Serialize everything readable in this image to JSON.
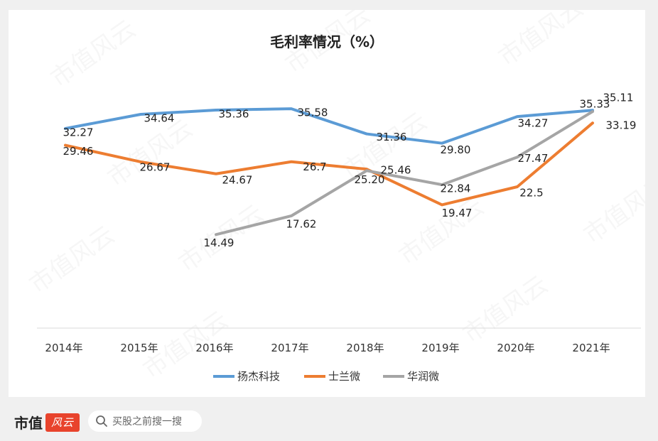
{
  "chart_data": {
    "type": "line",
    "title": "毛利率情况（%）",
    "categories": [
      "2014年",
      "2015年",
      "2016年",
      "2017年",
      "2018年",
      "2019年",
      "2020年",
      "2021年"
    ],
    "ylim": [
      0,
      40
    ],
    "legend_position": "bottom",
    "series": [
      {
        "name": "扬杰科技",
        "color": "#5b9bd5",
        "values": [
          32.27,
          34.64,
          35.36,
          35.58,
          31.36,
          29.8,
          34.27,
          35.33
        ],
        "labels": [
          "32.27",
          "34.64",
          "35.36",
          "35.58",
          "31.36",
          "29.80",
          "34.27",
          "35.33"
        ]
      },
      {
        "name": "士兰微",
        "color": "#ed7d31",
        "values": [
          29.46,
          26.67,
          24.67,
          26.7,
          25.46,
          19.47,
          22.5,
          33.19
        ],
        "labels": [
          "29.46",
          "26.67",
          "24.67",
          "26.7",
          "25.46",
          "19.47",
          "22.5",
          "33.19"
        ]
      },
      {
        "name": "华润微",
        "color": "#a5a5a5",
        "values": [
          null,
          null,
          14.49,
          17.62,
          25.2,
          22.84,
          27.47,
          35.11
        ],
        "labels": [
          null,
          null,
          "14.49",
          "17.62",
          "25.20",
          "22.84",
          "27.47",
          "35.11"
        ]
      }
    ]
  },
  "footer": {
    "brand": "市值",
    "brand_logo": "风云",
    "search_placeholder": "买股之前搜一搜"
  },
  "watermark": "市值风云"
}
